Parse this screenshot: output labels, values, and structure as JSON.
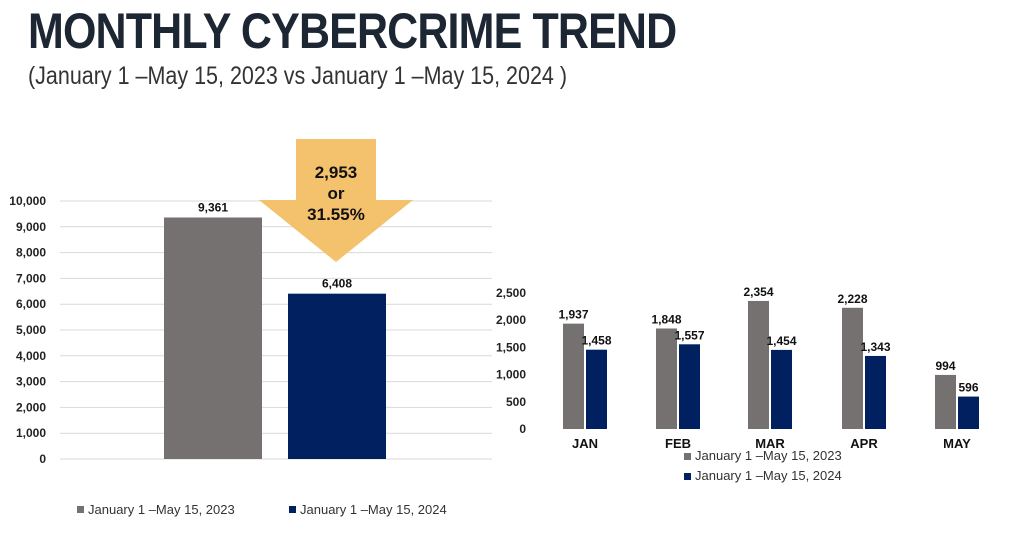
{
  "page": {
    "title": "MONTHLY CYBERCRIME TREND",
    "subtitle": "(January 1 –May 15, 2023  vs January 1 –May 15, 2024 )",
    "callout": {
      "line1": "2,953",
      "line2": "or",
      "line3": "31.55%"
    }
  },
  "colors": {
    "series_2023": "#767171",
    "series_2024": "#002060",
    "callout": "#F4C16D",
    "grid": "#d9d9d9"
  },
  "chart_data": [
    {
      "type": "bar",
      "categories": [
        ""
      ],
      "series": [
        {
          "name": "January 1 –May 15, 2023",
          "values": [
            9361
          ]
        },
        {
          "name": "January 1 –May 15, 2024",
          "values": [
            6408
          ]
        }
      ],
      "data_labels": [
        "9,361",
        "6,408"
      ],
      "ylim": [
        0,
        10000
      ],
      "yticks": [
        0,
        1000,
        2000,
        3000,
        4000,
        5000,
        6000,
        7000,
        8000,
        9000,
        10000
      ],
      "ytick_labels": [
        "0",
        "1,000",
        "2,000",
        "3,000",
        "4,000",
        "5,000",
        "6,000",
        "7,000",
        "8,000",
        "9,000",
        "10,000"
      ],
      "grid": true,
      "legend": "bottom"
    },
    {
      "type": "bar",
      "categories": [
        "JAN",
        "FEB",
        "MAR",
        "APR",
        "MAY"
      ],
      "series": [
        {
          "name": "January 1 –May 15, 2023",
          "values": [
            1937,
            1848,
            2354,
            2228,
            994
          ],
          "labels": [
            "1,937",
            "1,848",
            "2,354",
            "2,228",
            "994"
          ]
        },
        {
          "name": "January 1 –May 15, 2024",
          "values": [
            1458,
            1557,
            1454,
            1343,
            596
          ],
          "labels": [
            "1,458",
            "1,557",
            "1,454",
            "1,343",
            "596"
          ]
        }
      ],
      "ylim": [
        0,
        2500
      ],
      "yticks": [
        0,
        500,
        1000,
        1500,
        2000,
        2500
      ],
      "ytick_labels": [
        "0",
        "500",
        "1,000",
        "1,500",
        "2,000",
        "2,500"
      ],
      "grid": false,
      "legend": "bottom"
    }
  ]
}
